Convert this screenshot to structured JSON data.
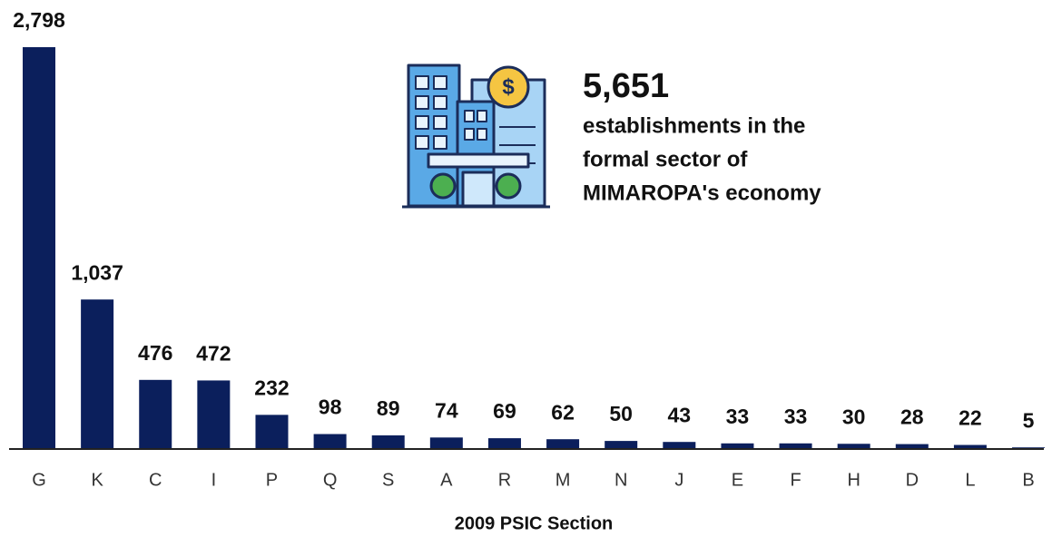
{
  "chart_data": {
    "type": "bar",
    "x_label": "2009 PSIC Section",
    "categories": [
      "G",
      "K",
      "C",
      "I",
      "P",
      "Q",
      "S",
      "A",
      "R",
      "M",
      "N",
      "J",
      "E",
      "F",
      "H",
      "D",
      "L",
      "B"
    ],
    "values": [
      2798,
      1037,
      476,
      472,
      232,
      98,
      89,
      74,
      69,
      62,
      50,
      43,
      33,
      33,
      30,
      28,
      22,
      5
    ],
    "value_labels": [
      "2,798",
      "1,037",
      "476",
      "472",
      "232",
      "98",
      "89",
      "74",
      "69",
      "62",
      "50",
      "43",
      "33",
      "33",
      "30",
      "28",
      "22",
      "5"
    ],
    "color": "#0b1f5c",
    "annotation": {
      "headline": "5,651",
      "lines": [
        "establishments in the",
        "formal sector of",
        "MIMAROPA's economy"
      ]
    }
  }
}
